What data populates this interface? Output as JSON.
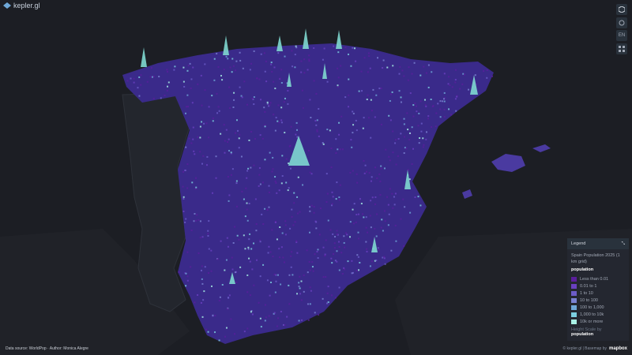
{
  "app": {
    "logo": "kepler.gl"
  },
  "toolbar": {
    "language": "EN"
  },
  "legend": {
    "header": "Legend",
    "layer_title": "Spain Population 2025 (1 km grid)",
    "color_field": "population",
    "items": [
      {
        "label": "Less than 0.01",
        "color": "#5a1e9c"
      },
      {
        "label": "0.01 to 1",
        "color": "#6a40c0"
      },
      {
        "label": "1 to 10",
        "color": "#6c5cc8"
      },
      {
        "label": "10 to 100",
        "color": "#7a82d2"
      },
      {
        "label": "100 to 1,000",
        "color": "#6fa8d8"
      },
      {
        "label": "1,000 to 10k",
        "color": "#7ccfe0"
      },
      {
        "label": "10k or more",
        "color": "#a9f2e6"
      }
    ],
    "height_label": "Height Scale by",
    "height_field": "population"
  },
  "footer": {
    "source": "Data source: WorldPop · Author: Monica Alegre",
    "attribution": "© kepler.gl | Basemap by",
    "basemap": "mapbox"
  }
}
